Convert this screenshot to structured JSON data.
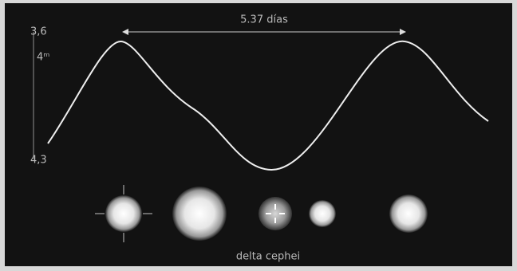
{
  "scale": {
    "top": "3,6",
    "mid": "4ᵐ",
    "bottom": "4,3"
  },
  "period": "5.37 días",
  "caption": "delta cephei"
}
